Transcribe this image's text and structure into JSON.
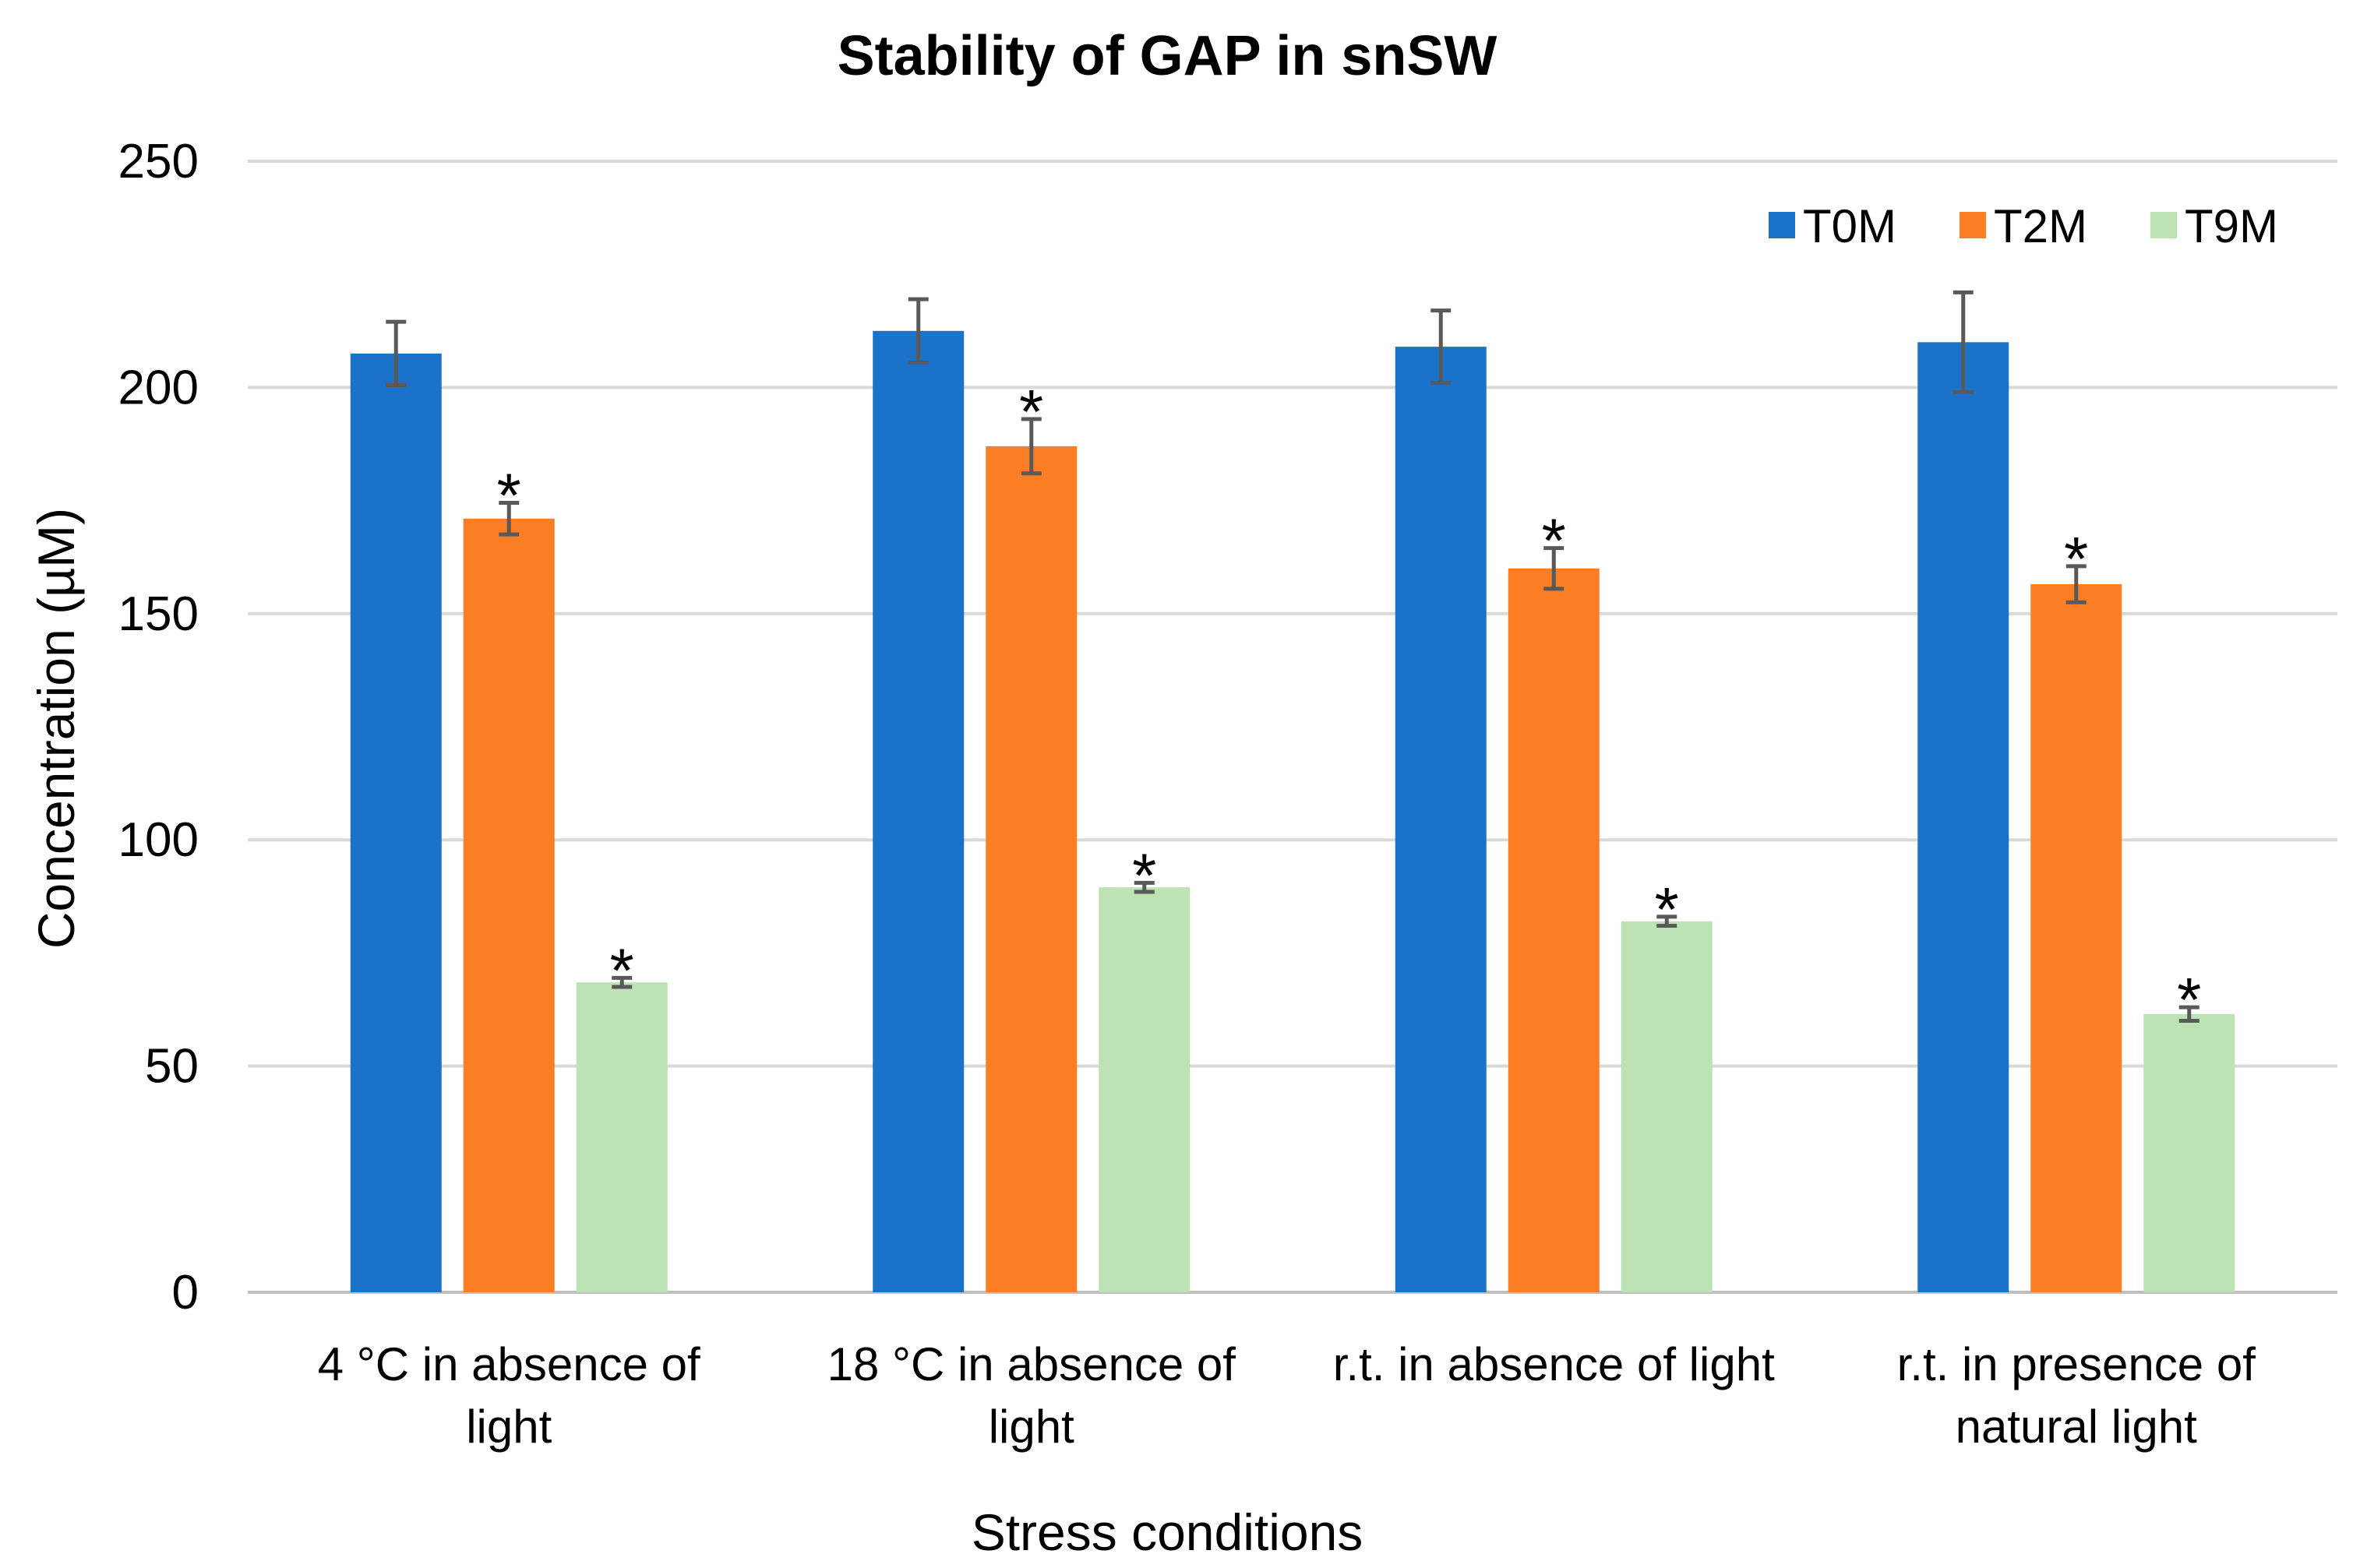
{
  "chart_data": {
    "type": "bar",
    "title": "Stability of GAP in snSW",
    "xlabel": "Stress conditions",
    "ylabel": "Concentration (µM)",
    "ylim": [
      0,
      250
    ],
    "yticks": [
      0,
      50,
      100,
      150,
      200,
      250
    ],
    "grid": true,
    "legend_position": "top-right",
    "categories": [
      [
        "4 °C in absence of",
        "light"
      ],
      [
        "18 °C in absence of",
        "light"
      ],
      [
        "r.t. in absence of light"
      ],
      [
        "r.t. in presence of",
        "natural light"
      ]
    ],
    "series": [
      {
        "name": "T0M",
        "color": "#1a72c9",
        "values": [
          207.5,
          212.5,
          209,
          210
        ],
        "errors": [
          7,
          7,
          8,
          11
        ],
        "significant": [
          false,
          false,
          false,
          false
        ]
      },
      {
        "name": "T2M",
        "color": "#fb7d24",
        "values": [
          171,
          187,
          160,
          156.5
        ],
        "errors": [
          3.5,
          6,
          4.5,
          4
        ],
        "significant": [
          true,
          true,
          true,
          true
        ]
      },
      {
        "name": "T9M",
        "color": "#bde3b4",
        "values": [
          68.5,
          89.5,
          82,
          61.5
        ],
        "errors": [
          1,
          1,
          1,
          1.5
        ],
        "significant": [
          true,
          true,
          true,
          true
        ]
      }
    ],
    "significance_marker": "*"
  }
}
